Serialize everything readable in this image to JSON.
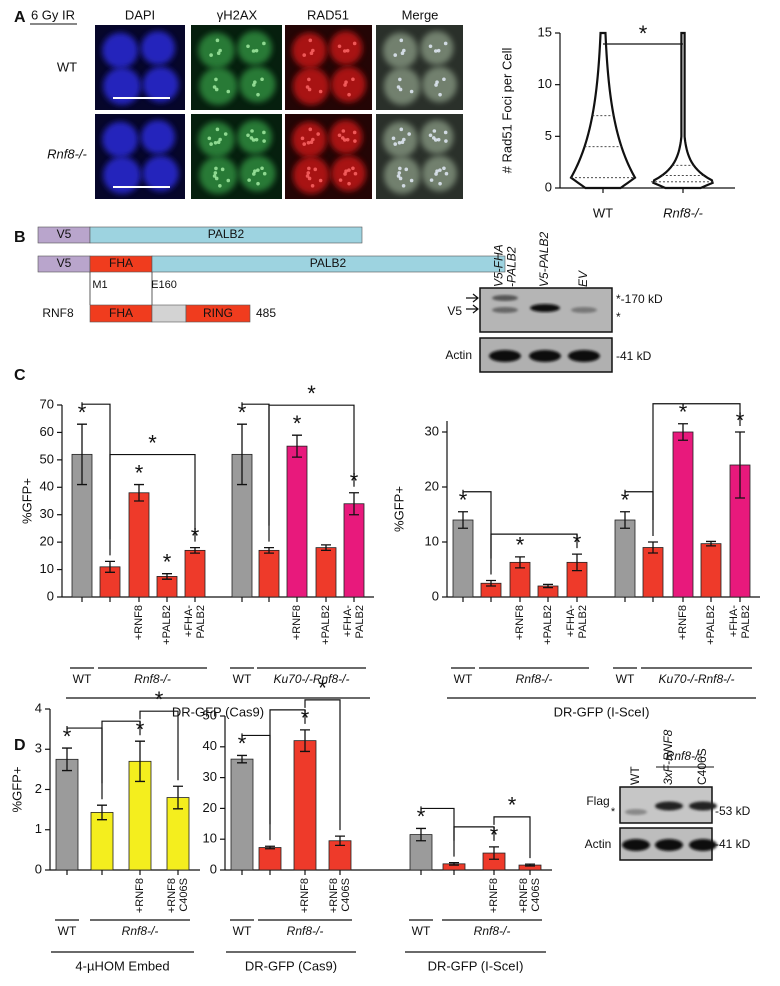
{
  "panel_labels": [
    "A",
    "B",
    "C",
    "D"
  ],
  "panel_a": {
    "condition": "6 Gy IR",
    "columns": [
      "DAPI",
      "γH2AX",
      "RAD51",
      "Merge"
    ],
    "rows": [
      "WT",
      "Rnf8-/-"
    ]
  },
  "panel_b": {
    "construct_1": [
      "V5",
      "PALB2"
    ],
    "construct_2": [
      "V5",
      "FHA",
      "PALB2"
    ],
    "positions": [
      "M1",
      "E160"
    ],
    "rnf8": {
      "name": "RNF8",
      "domains": [
        "FHA",
        "RING"
      ],
      "length": "485"
    },
    "blot": {
      "lanes": [
        "V5-FHA\n-PALB2",
        "V5-PALB2",
        "EV"
      ],
      "rows": [
        "V5",
        "Actin"
      ],
      "markers": [
        "*-170 kD",
        "*",
        "-41 kD"
      ]
    }
  },
  "panel_d_blot": {
    "genotype": "Rnf8-/-",
    "lanes": [
      "WT",
      "3xF-RNF8",
      "C406S"
    ],
    "rows": [
      "Flag",
      "Actin"
    ],
    "markers": [
      "*",
      "-53 kD",
      "-41 kD"
    ]
  },
  "chart_data": [
    {
      "type": "violin",
      "ylabel": "# Rad51 Foci per Cell",
      "categories": [
        "WT",
        "Rnf8-/-"
      ],
      "quartiles": [
        [
          1,
          4,
          7
        ],
        [
          0.6,
          1.2,
          2.2
        ]
      ],
      "max": [
        15,
        15
      ],
      "color": "#111111",
      "ylim": [
        0,
        15
      ],
      "yticks": [
        0,
        5,
        10,
        15
      ],
      "significance": "*"
    },
    {
      "type": "bar",
      "ylabel": "%GFP+",
      "ylim": [
        0,
        70
      ],
      "yticks": [
        0,
        10,
        20,
        30,
        40,
        50,
        60,
        70
      ],
      "categories": [
        null,
        null,
        "+RNF8",
        "+PALB2",
        "+FHA-\nPALB2",
        null,
        null,
        "+RNF8",
        "+PALB2",
        "+FHA-\nPALB2"
      ],
      "values": [
        52,
        11,
        38,
        7.5,
        17,
        52,
        17,
        55,
        18,
        34
      ],
      "errors": [
        11,
        2,
        3,
        1,
        1,
        11,
        1,
        4,
        1,
        4
      ],
      "colors": [
        "#9b9b9b",
        "#ee3a2a",
        "#ee3a2a",
        "#ee3a2a",
        "#ee3a2a",
        "#9b9b9b",
        "#ee3a2a",
        "#e8197c",
        "#ee3a2a",
        "#e8197c"
      ],
      "stars": [
        {
          "bar": 0,
          "label": "*"
        },
        {
          "bar": 2,
          "label": "*"
        },
        {
          "bar": 3,
          "label": "*"
        },
        {
          "bar": 4,
          "label": "*"
        },
        {
          "bar": 5,
          "label": "*"
        },
        {
          "bar": 7,
          "label": "*"
        },
        {
          "bar": 9,
          "label": "*"
        }
      ],
      "brackets": [
        {
          "from": 0,
          "to": 1
        },
        {
          "from": 1,
          "to": 4,
          "label": "*"
        },
        {
          "from": 5,
          "to": 6
        },
        {
          "from": 6,
          "to": 9,
          "label": "*"
        }
      ],
      "groups": [
        {
          "label": "WT",
          "from": 0,
          "to": 0
        },
        {
          "label": "Rnf8-/-",
          "from": 1,
          "to": 4,
          "italic": true
        },
        {
          "label": "WT",
          "from": 5,
          "to": 5
        },
        {
          "label": "Ku70-/-Rnf8-/-",
          "from": 6,
          "to": 9,
          "italic": true
        }
      ],
      "sections": [
        {
          "label": "DR-GFP (Cas9)",
          "from": 0,
          "to": 9
        }
      ]
    },
    {
      "type": "bar",
      "ylabel": "%GFP+",
      "ylim": [
        0,
        32
      ],
      "yticks": [
        0,
        10,
        20,
        30
      ],
      "categories": [
        null,
        null,
        "+RNF8",
        "+PALB2",
        "+FHA-\nPALB2",
        null,
        null,
        "+RNF8",
        "+PALB2",
        "+FHA-\nPALB2"
      ],
      "values": [
        14,
        2.5,
        6.3,
        2,
        6.3,
        14,
        9,
        30,
        9.7,
        24
      ],
      "errors": [
        1.5,
        0.5,
        1,
        0.3,
        1.5,
        1.5,
        1,
        1.5,
        0.4,
        6
      ],
      "colors": [
        "#9b9b9b",
        "#ee3a2a",
        "#ee3a2a",
        "#ee3a2a",
        "#ee3a2a",
        "#9b9b9b",
        "#ee3a2a",
        "#e8197c",
        "#ee3a2a",
        "#e8197c"
      ],
      "stars": [
        {
          "bar": 0,
          "label": "*"
        },
        {
          "bar": 2,
          "label": "*"
        },
        {
          "bar": 4,
          "label": "*"
        },
        {
          "bar": 5,
          "label": "*"
        },
        {
          "bar": 7,
          "label": "*"
        },
        {
          "bar": 9,
          "label": "*"
        }
      ],
      "brackets": [
        {
          "from": 0,
          "to": 1
        },
        {
          "from": 1,
          "to": 4
        },
        {
          "from": 5,
          "to": 6
        },
        {
          "from": 6,
          "to": 9
        }
      ],
      "groups": [
        {
          "label": "WT",
          "from": 0,
          "to": 0
        },
        {
          "label": "Rnf8-/-",
          "from": 1,
          "to": 4,
          "italic": true
        },
        {
          "label": "WT",
          "from": 5,
          "to": 5
        },
        {
          "label": "Ku70-/-Rnf8-/-",
          "from": 6,
          "to": 9,
          "italic": true
        }
      ],
      "sections": [
        {
          "label": "DR-GFP (I-SceI)",
          "from": 0,
          "to": 9
        }
      ]
    },
    {
      "type": "bar",
      "ylabel": "%GFP+",
      "ylim": [
        0,
        4
      ],
      "yticks": [
        0,
        1,
        2,
        3,
        4
      ],
      "categories": [
        null,
        null,
        "+RNF8",
        "+RNF8\nC406S"
      ],
      "values": [
        2.75,
        1.43,
        2.7,
        1.8
      ],
      "errors": [
        0.28,
        0.18,
        0.5,
        0.28
      ],
      "colors": [
        "#9b9b9b",
        "#f4ee1e",
        "#f4ee1e",
        "#f4ee1e"
      ],
      "stars": [
        {
          "bar": 0,
          "label": "*"
        },
        {
          "bar": 2,
          "label": "*"
        }
      ],
      "brackets": [
        {
          "from": 0,
          "to": 1
        },
        {
          "from": 1,
          "to": 2
        },
        {
          "from": 2,
          "to": 3,
          "label": "*"
        }
      ],
      "groups": [
        {
          "label": "WT",
          "from": 0,
          "to": 0
        },
        {
          "label": "Rnf8-/-",
          "from": 1,
          "to": 3,
          "italic": true
        }
      ],
      "sections": [
        {
          "label": "4-µHOM Embed",
          "from": 0,
          "to": 3
        }
      ]
    },
    {
      "type": "bar",
      "ylim": [
        0,
        50
      ],
      "yticks": [
        0,
        10,
        20,
        30,
        40,
        50
      ],
      "categories": [
        null,
        null,
        "+RNF8",
        "+RNF8\nC406S",
        null,
        null,
        "+RNF8",
        "+RNF8\nC406S"
      ],
      "values": [
        36,
        7.3,
        42,
        9.5,
        11.5,
        2,
        5.5,
        1.6
      ],
      "errors": [
        1.2,
        0.4,
        3.5,
        1.5,
        2,
        0.4,
        2,
        0.3
      ],
      "colors": [
        "#9b9b9b",
        "#ee3a2a",
        "#ee3a2a",
        "#ee3a2a",
        "#9b9b9b",
        "#ee3a2a",
        "#ee3a2a",
        "#ee3a2a"
      ],
      "stars": [
        {
          "bar": 0,
          "label": "*"
        },
        {
          "bar": 2,
          "label": "*"
        },
        {
          "bar": 4,
          "label": "*"
        },
        {
          "bar": 6,
          "label": "*"
        }
      ],
      "brackets": [
        {
          "from": 0,
          "to": 1
        },
        {
          "from": 1,
          "to": 2
        },
        {
          "from": 2,
          "to": 3,
          "label": "*"
        },
        {
          "from": 4,
          "to": 5
        },
        {
          "from": 5,
          "to": 6
        },
        {
          "from": 6,
          "to": 7,
          "label": "*"
        }
      ],
      "groups": [
        {
          "label": "WT",
          "from": 0,
          "to": 0
        },
        {
          "label": "Rnf8-/-",
          "from": 1,
          "to": 3,
          "italic": true
        },
        {
          "label": "WT",
          "from": 4,
          "to": 4
        },
        {
          "label": "Rnf8-/-",
          "from": 5,
          "to": 7,
          "italic": true
        }
      ],
      "sections": [
        {
          "label": "DR-GFP (Cas9)",
          "from": 0,
          "to": 3
        },
        {
          "label": "DR-GFP (I-SceI)",
          "from": 4,
          "to": 7
        }
      ]
    }
  ]
}
